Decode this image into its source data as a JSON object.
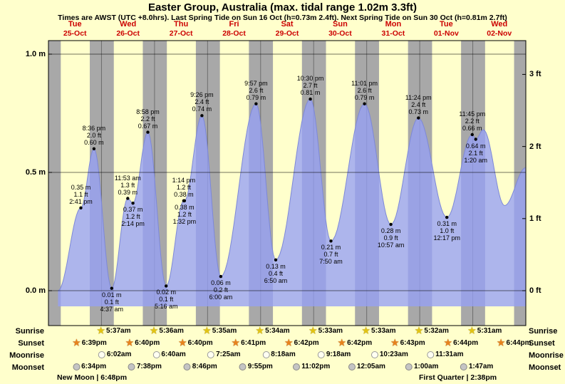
{
  "title": "Easter Group, Australia (max. tidal range 1.02m 3.3ft)",
  "subtitle": "Times are AWST (UTC +8.0hrs). Last Spring Tide on Sun 16 Oct (h=0.73m 2.4ft). Next Spring Tide on Sun 30 Oct (h=0.81m 2.7ft)",
  "colors": {
    "page_bg": "#ffffcc",
    "day_band": "#ffffcc",
    "night_band": "#a8a8a8",
    "tide_fill": "rgba(150,160,245,0.78)",
    "tide_stroke": "#7d88d8",
    "grid": "#333322",
    "day_label_red": "#cc0000"
  },
  "days": [
    {
      "name": "Tue",
      "date": "25-Oct"
    },
    {
      "name": "Wed",
      "date": "26-Oct"
    },
    {
      "name": "Thu",
      "date": "27-Oct"
    },
    {
      "name": "Fri",
      "date": "28-Oct"
    },
    {
      "name": "Sat",
      "date": "29-Oct"
    },
    {
      "name": "Sun",
      "date": "30-Oct"
    },
    {
      "name": "Mon",
      "date": "31-Oct"
    },
    {
      "name": "Tue",
      "date": "01-Nov"
    },
    {
      "name": "Wed",
      "date": "02-Nov"
    }
  ],
  "axis": {
    "left_labels": [
      {
        "text": "1.0 m",
        "m": 1.0
      },
      {
        "text": "0.5 m",
        "m": 0.5
      },
      {
        "text": "0.0 m",
        "m": 0.0
      }
    ],
    "right_labels": [
      {
        "text": "3 ft",
        "m": 0.9144
      },
      {
        "text": "2 ft",
        "m": 0.6096
      },
      {
        "text": "1 ft",
        "m": 0.3048
      },
      {
        "text": "0 ft",
        "m": 0.0
      }
    ]
  },
  "chart_data": {
    "type": "area",
    "title": "Tide height for Easter Group, Australia",
    "x_unit": "days since Tue 25-Oct 00:00 AWST",
    "xlim": [
      0,
      9
    ],
    "y_unit": "m",
    "ylim": [
      -0.15,
      1.06
    ],
    "grid_values_m": [
      0.0,
      0.5,
      1.0
    ],
    "daylight": {
      "sunrise_hour": 5.58,
      "sunset_hour": 18.7
    },
    "events": [
      {
        "day": 0,
        "time": "2:41 pm",
        "h": 0.35,
        "m": "0.35 m",
        "ft": "1.1 ft",
        "pos": "above",
        "order": "value-first"
      },
      {
        "day": 0,
        "time": "8:36 pm",
        "h": 0.6,
        "m": "0.60 m",
        "ft": "2.0 ft",
        "pos": "above",
        "order": "time-first"
      },
      {
        "day": 1,
        "time": "4:37 am",
        "h": 0.01,
        "m": "0.01 m",
        "ft": "0.1 ft",
        "pos": "below",
        "order": "value-first"
      },
      {
        "day": 1,
        "time": "11:53 am",
        "h": 0.39,
        "m": "0.39 m",
        "ft": "1.3 ft",
        "pos": "above",
        "order": "time-first"
      },
      {
        "day": 1,
        "time": "2:14 pm",
        "h": 0.37,
        "m": "0.37 m",
        "ft": "1.2 ft",
        "pos": "below",
        "order": "value-first"
      },
      {
        "day": 1,
        "time": "8:58 pm",
        "h": 0.67,
        "m": "0.67 m",
        "ft": "2.2 ft",
        "pos": "above",
        "order": "time-first"
      },
      {
        "day": 2,
        "time": "5:16 am",
        "h": 0.02,
        "m": "0.02 m",
        "ft": "0.1 ft",
        "pos": "below",
        "order": "value-first"
      },
      {
        "day": 2,
        "time": "1:14 pm",
        "h": 0.38,
        "m": "0.38 m",
        "ft": "1.2 ft",
        "pos": "above",
        "order": "time-first"
      },
      {
        "day": 2,
        "time": "1:32 pm",
        "h": 0.38,
        "m": "0.38 m",
        "ft": "1.2 ft",
        "pos": "below",
        "order": "value-first"
      },
      {
        "day": 2,
        "time": "9:26 pm",
        "h": 0.74,
        "m": "0.74 m",
        "ft": "2.4 ft",
        "pos": "above",
        "order": "time-first"
      },
      {
        "day": 3,
        "time": "6:00 am",
        "h": 0.06,
        "m": "0.06 m",
        "ft": "0.2 ft",
        "pos": "below",
        "order": "value-first"
      },
      {
        "day": 3,
        "time": "9:57 pm",
        "h": 0.79,
        "m": "0.79 m",
        "ft": "2.6 ft",
        "pos": "above",
        "order": "time-first"
      },
      {
        "day": 4,
        "time": "6:50 am",
        "h": 0.13,
        "m": "0.13 m",
        "ft": "0.4 ft",
        "pos": "below",
        "order": "value-first"
      },
      {
        "day": 4,
        "time": "10:30 pm",
        "h": 0.81,
        "m": "0.81 m",
        "ft": "2.7 ft",
        "pos": "above",
        "order": "time-first"
      },
      {
        "day": 5,
        "time": "7:50 am",
        "h": 0.21,
        "m": "0.21 m",
        "ft": "0.7 ft",
        "pos": "below",
        "order": "value-first"
      },
      {
        "day": 5,
        "time": "11:01 pm",
        "h": 0.79,
        "m": "0.79 m",
        "ft": "2.6 ft",
        "pos": "above",
        "order": "time-first"
      },
      {
        "day": 6,
        "time": "10:57 am",
        "h": 0.28,
        "m": "0.28 m",
        "ft": "0.9 ft",
        "pos": "below",
        "order": "value-first"
      },
      {
        "day": 6,
        "time": "11:24 pm",
        "h": 0.73,
        "m": "0.73 m",
        "ft": "2.4 ft",
        "pos": "above",
        "order": "time-first"
      },
      {
        "day": 7,
        "time": "12:17 pm",
        "h": 0.31,
        "m": "0.31 m",
        "ft": "1.0 ft",
        "pos": "below",
        "order": "value-first"
      },
      {
        "day": 7,
        "time": "11:45 pm",
        "h": 0.66,
        "m": "0.66 m",
        "ft": "2.2 ft",
        "pos": "above",
        "order": "time-first"
      },
      {
        "day": 8,
        "time": "1:20 am",
        "h": 0.64,
        "m": "0.64 m",
        "ft": "2.1 ft",
        "pos": "below",
        "order": "value-first"
      }
    ],
    "curve_start": [
      [
        0.18,
        0.0
      ]
    ],
    "curve_tail": [
      [
        8.2,
        0.68
      ],
      [
        8.6,
        0.36
      ],
      [
        9.0,
        0.52
      ]
    ]
  },
  "almanac": {
    "rows": [
      {
        "label": "Sunrise",
        "icon": "sunrise-star",
        "items": [
          {
            "day": 1,
            "time": "5:37am"
          },
          {
            "day": 2,
            "time": "5:36am"
          },
          {
            "day": 3,
            "time": "5:35am"
          },
          {
            "day": 4,
            "time": "5:34am"
          },
          {
            "day": 5,
            "time": "5:33am"
          },
          {
            "day": 6,
            "time": "5:33am"
          },
          {
            "day": 7,
            "time": "5:32am"
          },
          {
            "day": 8,
            "time": "5:31am"
          }
        ]
      },
      {
        "label": "Sunset",
        "icon": "sunset-star",
        "items": [
          {
            "day": 0,
            "time": "6:39pm"
          },
          {
            "day": 1,
            "time": "6:40pm"
          },
          {
            "day": 2,
            "time": "6:40pm"
          },
          {
            "day": 3,
            "time": "6:41pm"
          },
          {
            "day": 4,
            "time": "6:42pm"
          },
          {
            "day": 5,
            "time": "6:42pm"
          },
          {
            "day": 6,
            "time": "6:43pm"
          },
          {
            "day": 7,
            "time": "6:44pm"
          },
          {
            "day": 8,
            "time": "6:44pm"
          }
        ]
      },
      {
        "label": "Moonrise",
        "icon": "moonrise-circle",
        "items": [
          {
            "day": 1,
            "time": "6:02am"
          },
          {
            "day": 2,
            "time": "6:40am"
          },
          {
            "day": 3,
            "time": "7:25am"
          },
          {
            "day": 4,
            "time": "8:18am"
          },
          {
            "day": 5,
            "time": "9:18am"
          },
          {
            "day": 6,
            "time": "10:23am"
          },
          {
            "day": 7,
            "time": "11:31am"
          }
        ]
      },
      {
        "label": "Moonset",
        "icon": "moonset-circle",
        "items": [
          {
            "day": 0,
            "time": "6:34pm"
          },
          {
            "day": 1,
            "time": "7:38pm"
          },
          {
            "day": 2,
            "time": "8:46pm"
          },
          {
            "day": 3,
            "time": "9:55pm"
          },
          {
            "day": 4,
            "time": "11:02pm"
          },
          {
            "day": 6,
            "time": "12:05am"
          },
          {
            "day": 7,
            "time": "1:00am"
          },
          {
            "day": 8,
            "time": "1:47am"
          }
        ]
      }
    ],
    "notes": [
      {
        "text": "New Moon | 6:48pm"
      },
      {
        "text": "First Quarter | 2:38pm"
      }
    ]
  }
}
